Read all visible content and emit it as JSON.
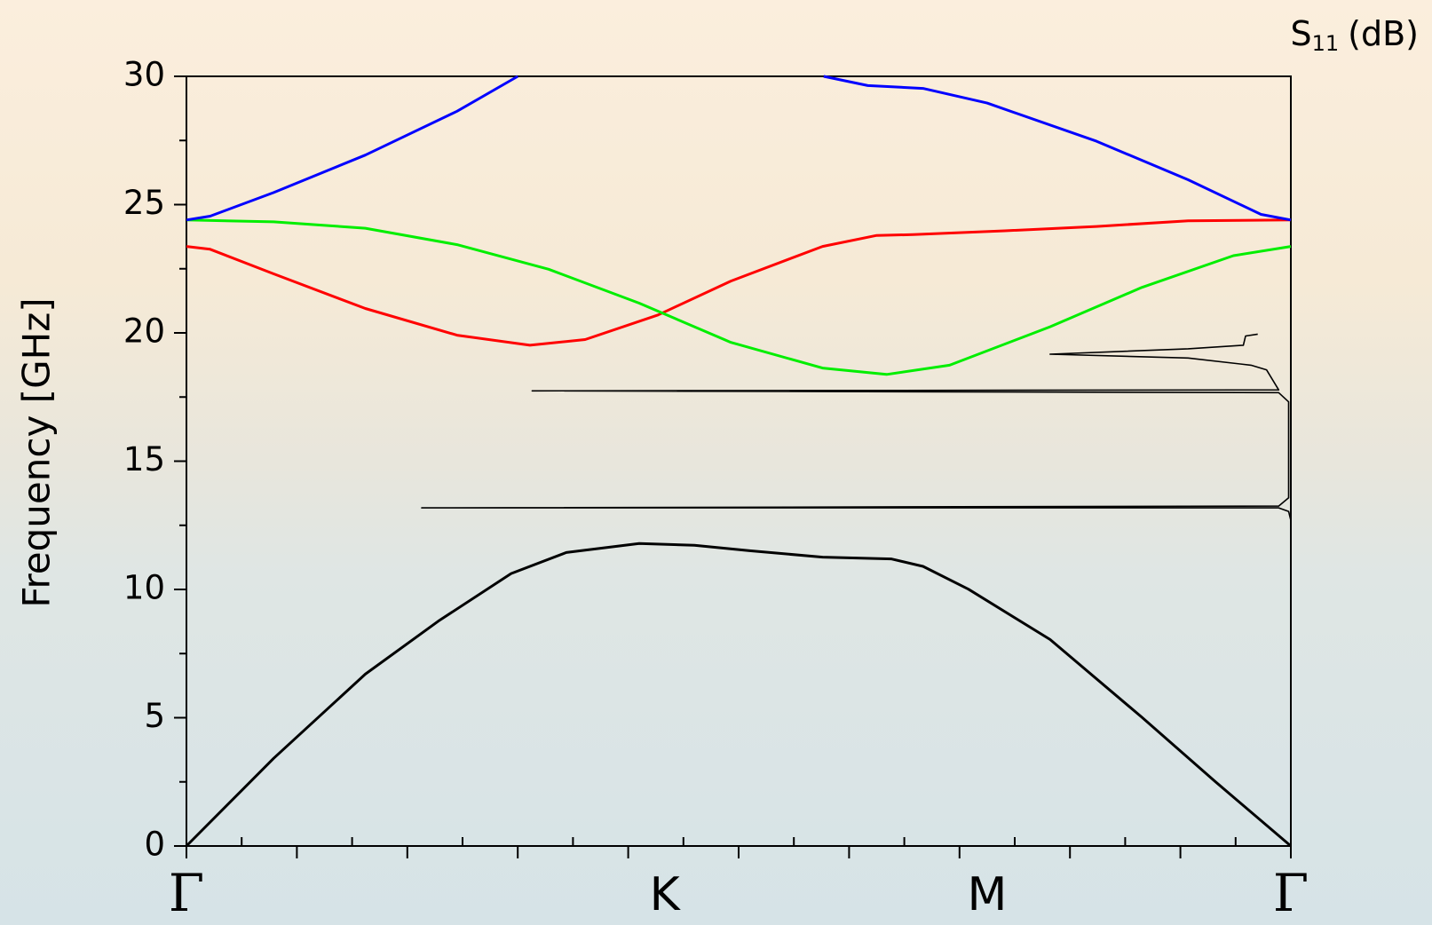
{
  "chart_data": {
    "type": "line",
    "y_label": "Frequency [GHz]",
    "corner_label": {
      "base": "S",
      "sub": "11",
      "unit": "(dB)"
    },
    "xlim": [
      0,
      1
    ],
    "ylim": [
      0,
      30
    ],
    "yticks": [
      0,
      5,
      10,
      15,
      20,
      25,
      30
    ],
    "yminorticks": [
      2.5,
      7.5,
      12.5,
      17.5,
      22.5,
      27.5
    ],
    "xticks": [
      {
        "value": 0,
        "label": "Γ"
      },
      {
        "value": 0.433,
        "label": "K"
      },
      {
        "value": 0.725,
        "label": "M"
      },
      {
        "value": 1,
        "label": "Γ"
      }
    ],
    "xmajorticks": [
      0,
      0.1,
      0.2,
      0.3,
      0.4,
      0.5,
      0.6,
      0.7,
      0.8,
      0.9,
      1
    ],
    "xminorticks": [
      0.05,
      0.15,
      0.25,
      0.35,
      0.45,
      0.55,
      0.65,
      0.75,
      0.85,
      0.95
    ],
    "series": [
      {
        "color": "#000000",
        "width": 3,
        "x": [
          0,
          0.079,
          0.162,
          0.228,
          0.294,
          0.344,
          0.41,
          0.46,
          0.51,
          0.576,
          0.638,
          0.667,
          0.708,
          0.782,
          0.865,
          0.931,
          1
        ],
        "values": [
          0,
          3.42,
          6.7,
          8.76,
          10.62,
          11.44,
          11.79,
          11.72,
          11.51,
          11.26,
          11.19,
          10.9,
          10.01,
          8.05,
          5.02,
          2.53,
          0
        ]
      },
      {
        "color": "#ff0000",
        "width": 3,
        "x": [
          0,
          0.0215,
          0.079,
          0.162,
          0.245,
          0.311,
          0.361,
          0.427,
          0.493,
          0.576,
          0.625,
          0.658,
          0.741,
          0.824,
          0.907,
          1
        ],
        "values": [
          23.37,
          23.26,
          22.3,
          20.95,
          19.91,
          19.52,
          19.74,
          20.7,
          22.02,
          23.37,
          23.8,
          23.83,
          23.98,
          24.15,
          24.37,
          24.4
        ]
      },
      {
        "color": "#00ee00",
        "width": 3,
        "x": [
          0,
          0.079,
          0.162,
          0.245,
          0.328,
          0.41,
          0.493,
          0.576,
          0.634,
          0.691,
          0.782,
          0.865,
          0.948,
          1
        ],
        "values": [
          24.4,
          24.33,
          24.08,
          23.44,
          22.48,
          21.16,
          19.63,
          18.63,
          18.38,
          18.74,
          20.24,
          21.77,
          23.01,
          23.37
        ]
      },
      {
        "color": "#0000ff",
        "width": 3,
        "x": [
          0,
          0.0215,
          0.079,
          0.162,
          0.245,
          0.3,
          null,
          0.577,
          0.617,
          0.667,
          0.725,
          0.824,
          0.907,
          0.973,
          1
        ],
        "values": [
          24.4,
          24.55,
          25.47,
          26.93,
          28.64,
          30,
          null,
          30,
          29.64,
          29.53,
          28.96,
          27.47,
          25.97,
          24.62,
          24.4
        ]
      },
      {
        "color": "#000000",
        "width": 1.6,
        "x": [
          1,
          0.998,
          0.989,
          0.213,
          0.989,
          0.998,
          0.998,
          0.989,
          0.313,
          0.989,
          0.978,
          0.964,
          0.907,
          0.782,
          0.907,
          0.957,
          0.959,
          0.97
        ],
        "values": [
          12.69,
          13.04,
          13.18,
          13.18,
          13.25,
          13.57,
          17.31,
          17.67,
          17.74,
          17.78,
          18.56,
          18.74,
          19.02,
          19.17,
          19.38,
          19.52,
          19.88,
          19.95
        ]
      }
    ]
  }
}
